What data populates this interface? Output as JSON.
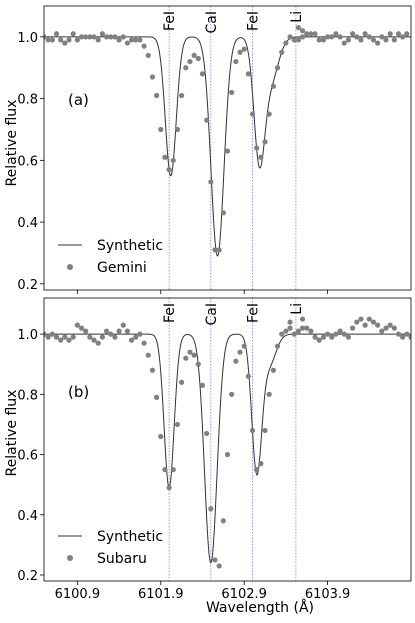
{
  "figure": {
    "xlabel": "Wavelength (Å)",
    "ylabel": "Relative flux",
    "x_ticks": [
      "6100.9",
      "6101.9",
      "6102.9",
      "6103.9"
    ],
    "line_labels": [
      "FeI",
      "CaI",
      "FeI",
      "Li"
    ]
  },
  "chart_data": [
    {
      "type": "line",
      "panel_label": "(a)",
      "xlim": [
        6100.5,
        6104.9
      ],
      "ylim": [
        0.18,
        1.1
      ],
      "y_ticks": [
        "0.2",
        "0.4",
        "0.6",
        "0.8",
        "1.0"
      ],
      "x_ticks": [
        6100.9,
        6101.9,
        6102.9,
        6103.9
      ],
      "line_markers": [
        {
          "label": "FeI",
          "x": 6102.0
        },
        {
          "label": "CaI",
          "x": 6102.5
        },
        {
          "label": "FeI",
          "x": 6103.0
        },
        {
          "label": "Li",
          "x": 6103.52
        }
      ],
      "legend_position": "lower-left",
      "series": [
        {
          "name": "Synthetic",
          "kind": "line",
          "color": "#333333",
          "lines": [
            {
              "center": 6102.02,
              "depth": 0.45,
              "sigma": 0.065
            },
            {
              "center": 6102.58,
              "depth": 0.71,
              "sigma": 0.078
            },
            {
              "center": 6103.08,
              "depth": 0.38,
              "sigma": 0.065
            },
            {
              "center": 6103.22,
              "depth": 0.14,
              "sigma": 0.09
            }
          ]
        },
        {
          "name": "Gemini",
          "kind": "scatter",
          "color": "#808080",
          "points": [
            [
              6100.5,
              1.0
            ],
            [
              6100.55,
              0.99
            ],
            [
              6100.6,
              0.99
            ],
            [
              6100.65,
              1.01
            ],
            [
              6100.7,
              0.99
            ],
            [
              6100.75,
              0.98
            ],
            [
              6100.8,
              0.99
            ],
            [
              6100.85,
              1.01
            ],
            [
              6100.9,
              0.99
            ],
            [
              6100.95,
              1.0
            ],
            [
              6101.0,
              1.0
            ],
            [
              6101.05,
              1.0
            ],
            [
              6101.1,
              1.0
            ],
            [
              6101.15,
              0.99
            ],
            [
              6101.2,
              1.01
            ],
            [
              6101.25,
              1.0
            ],
            [
              6101.3,
              1.0
            ],
            [
              6101.35,
              1.0
            ],
            [
              6101.4,
              0.99
            ],
            [
              6101.45,
              1.0
            ],
            [
              6101.5,
              0.98
            ],
            [
              6101.55,
              0.99
            ],
            [
              6101.6,
              0.99
            ],
            [
              6101.65,
              0.99
            ],
            [
              6101.7,
              0.97
            ],
            [
              6101.75,
              0.94
            ],
            [
              6101.8,
              0.87
            ],
            [
              6101.85,
              0.81
            ],
            [
              6101.9,
              0.7
            ],
            [
              6101.95,
              0.61
            ],
            [
              6102.0,
              0.57
            ],
            [
              6102.05,
              0.6
            ],
            [
              6102.1,
              0.7
            ],
            [
              6102.15,
              0.81
            ],
            [
              6102.2,
              0.9
            ],
            [
              6102.25,
              0.92
            ],
            [
              6102.3,
              0.94
            ],
            [
              6102.35,
              0.93
            ],
            [
              6102.4,
              0.88
            ],
            [
              6102.45,
              0.73
            ],
            [
              6102.5,
              0.53
            ],
            [
              6102.55,
              0.31
            ],
            [
              6102.6,
              0.31
            ],
            [
              6102.65,
              0.43
            ],
            [
              6102.7,
              0.63
            ],
            [
              6102.75,
              0.82
            ],
            [
              6102.8,
              0.92
            ],
            [
              6102.85,
              0.95
            ],
            [
              6102.9,
              0.96
            ],
            [
              6102.95,
              0.88
            ],
            [
              6103.0,
              0.75
            ],
            [
              6103.05,
              0.64
            ],
            [
              6103.1,
              0.61
            ],
            [
              6103.15,
              0.66
            ],
            [
              6103.2,
              0.75
            ],
            [
              6103.25,
              0.84
            ],
            [
              6103.3,
              0.9
            ],
            [
              6103.35,
              0.95
            ],
            [
              6103.4,
              0.98
            ],
            [
              6103.45,
              1.0
            ],
            [
              6103.5,
              0.99
            ],
            [
              6103.55,
              0.99
            ],
            [
              6103.6,
              1.0
            ],
            [
              6103.65,
              1.01
            ],
            [
              6103.7,
              1.01
            ],
            [
              6103.75,
              1.01
            ],
            [
              6103.8,
              0.99
            ],
            [
              6103.85,
              0.99
            ],
            [
              6103.9,
              1.0
            ],
            [
              6103.95,
              1.0
            ],
            [
              6104.0,
              1.01
            ],
            [
              6104.05,
              1.0
            ],
            [
              6104.1,
              0.98
            ],
            [
              6104.15,
              0.99
            ],
            [
              6104.2,
              1.01
            ],
            [
              6104.25,
              1.0
            ],
            [
              6104.3,
              0.99
            ],
            [
              6104.35,
              1.01
            ],
            [
              6104.4,
              1.0
            ],
            [
              6104.45,
              0.99
            ],
            [
              6104.5,
              0.98
            ],
            [
              6104.55,
              1.0
            ],
            [
              6104.6,
              0.99
            ],
            [
              6104.65,
              1.01
            ],
            [
              6104.7,
              0.99
            ],
            [
              6104.75,
              1.01
            ],
            [
              6104.8,
              1.0
            ],
            [
              6104.85,
              1.01
            ],
            [
              6103.55,
              1.03
            ],
            [
              6103.6,
              1.02
            ]
          ]
        }
      ]
    },
    {
      "type": "line",
      "panel_label": "(b)",
      "xlim": [
        6100.5,
        6104.9
      ],
      "ylim": [
        0.18,
        1.12
      ],
      "y_ticks": [
        "0.2",
        "0.4",
        "0.6",
        "0.8",
        "1.0"
      ],
      "x_ticks": [
        6100.9,
        6101.9,
        6102.9,
        6103.9
      ],
      "line_markers": [
        {
          "label": "FeI",
          "x": 6102.0
        },
        {
          "label": "CaI",
          "x": 6102.5
        },
        {
          "label": "FeI",
          "x": 6103.0
        },
        {
          "label": "Li",
          "x": 6103.52
        }
      ],
      "legend_position": "lower-left",
      "series": [
        {
          "name": "Synthetic",
          "kind": "line",
          "color": "#333333",
          "lines": [
            {
              "center": 6102.0,
              "depth": 0.51,
              "sigma": 0.06
            },
            {
              "center": 6102.5,
              "depth": 0.76,
              "sigma": 0.075
            },
            {
              "center": 6103.05,
              "depth": 0.45,
              "sigma": 0.06
            },
            {
              "center": 6103.2,
              "depth": 0.1,
              "sigma": 0.08
            }
          ]
        },
        {
          "name": "Subaru",
          "kind": "scatter",
          "color": "#808080",
          "points": [
            [
              6100.5,
              1.0
            ],
            [
              6100.55,
              0.99
            ],
            [
              6100.6,
              1.0
            ],
            [
              6100.65,
              0.99
            ],
            [
              6100.7,
              0.98
            ],
            [
              6100.75,
              0.99
            ],
            [
              6100.8,
              0.98
            ],
            [
              6100.85,
              0.99
            ],
            [
              6100.9,
              1.03
            ],
            [
              6100.95,
              1.02
            ],
            [
              6101.0,
              1.01
            ],
            [
              6101.05,
              0.99
            ],
            [
              6101.1,
              0.98
            ],
            [
              6101.15,
              0.97
            ],
            [
              6101.2,
              0.99
            ],
            [
              6101.25,
              1.01
            ],
            [
              6101.3,
              1.0
            ],
            [
              6101.35,
              0.99
            ],
            [
              6101.4,
              1.01
            ],
            [
              6101.45,
              1.03
            ],
            [
              6101.5,
              1.01
            ],
            [
              6101.55,
              0.98
            ],
            [
              6101.6,
              0.99
            ],
            [
              6101.65,
              1.0
            ],
            [
              6101.7,
              0.97
            ],
            [
              6101.75,
              0.93
            ],
            [
              6101.8,
              0.88
            ],
            [
              6101.85,
              0.79
            ],
            [
              6101.9,
              0.66
            ],
            [
              6101.95,
              0.55
            ],
            [
              6102.0,
              0.49
            ],
            [
              6102.05,
              0.55
            ],
            [
              6102.1,
              0.7
            ],
            [
              6102.15,
              0.84
            ],
            [
              6102.2,
              0.92
            ],
            [
              6102.25,
              0.94
            ],
            [
              6102.3,
              0.93
            ],
            [
              6102.35,
              0.9
            ],
            [
              6102.4,
              0.83
            ],
            [
              6102.45,
              0.67
            ],
            [
              6102.5,
              0.42
            ],
            [
              6102.55,
              0.25
            ],
            [
              6102.6,
              0.23
            ],
            [
              6102.65,
              0.38
            ],
            [
              6102.7,
              0.6
            ],
            [
              6102.75,
              0.8
            ],
            [
              6102.8,
              0.91
            ],
            [
              6102.85,
              0.94
            ],
            [
              6102.9,
              0.96
            ],
            [
              6102.95,
              0.86
            ],
            [
              6103.0,
              0.68
            ],
            [
              6103.05,
              0.55
            ],
            [
              6103.1,
              0.57
            ],
            [
              6103.15,
              0.68
            ],
            [
              6103.2,
              0.8
            ],
            [
              6103.25,
              0.88
            ],
            [
              6103.3,
              0.96
            ],
            [
              6103.35,
              1.0
            ],
            [
              6103.4,
              1.01
            ],
            [
              6103.45,
              1.02
            ],
            [
              6103.5,
              1.0
            ],
            [
              6103.55,
              1.01
            ],
            [
              6103.6,
              1.02
            ],
            [
              6103.65,
              1.02
            ],
            [
              6103.7,
              1.01
            ],
            [
              6103.75,
              0.99
            ],
            [
              6103.8,
              0.98
            ],
            [
              6103.85,
              0.99
            ],
            [
              6103.9,
              1.0
            ],
            [
              6103.95,
              0.99
            ],
            [
              6104.0,
              1.0
            ],
            [
              6104.05,
              1.01
            ],
            [
              6104.1,
              1.0
            ],
            [
              6104.15,
              0.99
            ],
            [
              6104.2,
              1.02
            ],
            [
              6104.25,
              1.04
            ],
            [
              6104.3,
              1.05
            ],
            [
              6104.35,
              1.03
            ],
            [
              6104.4,
              1.05
            ],
            [
              6104.45,
              1.04
            ],
            [
              6104.5,
              1.03
            ],
            [
              6104.55,
              1.01
            ],
            [
              6104.6,
              1.02
            ],
            [
              6104.65,
              1.03
            ],
            [
              6104.7,
              1.02
            ],
            [
              6104.75,
              1.0
            ],
            [
              6104.8,
              0.99
            ],
            [
              6104.85,
              1.0
            ],
            [
              6104.9,
              0.99
            ],
            [
              6103.45,
              1.04
            ],
            [
              6103.6,
              1.05
            ]
          ]
        }
      ]
    }
  ]
}
